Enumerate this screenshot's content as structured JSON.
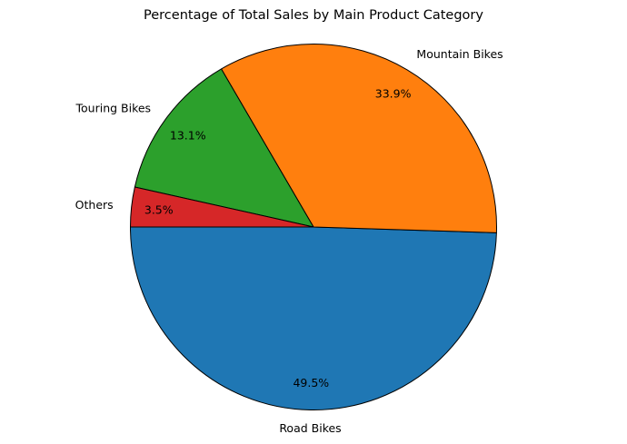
{
  "chart_data": {
    "type": "pie",
    "title": "Percentage of Total Sales by Main Product Category",
    "slices": [
      {
        "label": "Road Bikes",
        "value": 49.5,
        "pct_label": "49.5%",
        "color": "#1f77b4"
      },
      {
        "label": "Mountain Bikes",
        "value": 33.9,
        "pct_label": "33.9%",
        "color": "#ff7f0e"
      },
      {
        "label": "Touring Bikes",
        "value": 13.1,
        "pct_label": "13.1%",
        "color": "#2ca02c"
      },
      {
        "label": "Others",
        "value": 3.5,
        "pct_label": "3.5%",
        "color": "#d62728"
      }
    ],
    "start_angle": 180,
    "direction": "counterclockwise",
    "edge_color": "#000000",
    "legend": "none"
  }
}
